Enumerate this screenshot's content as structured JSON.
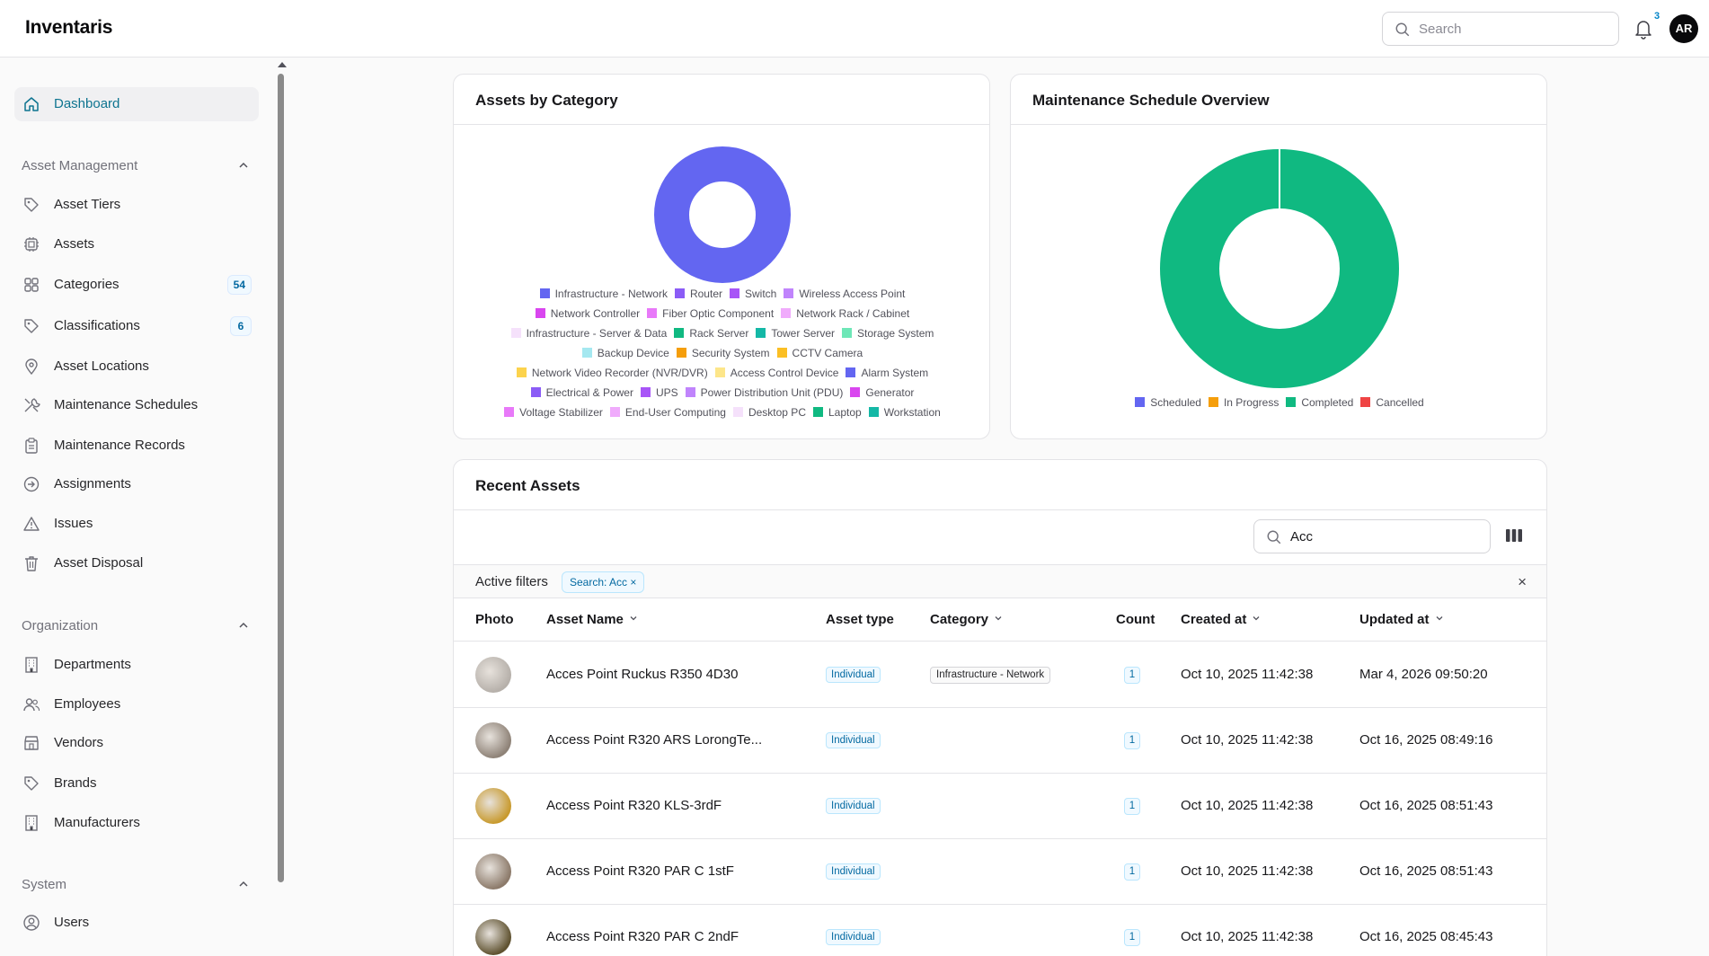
{
  "app": {
    "title": "Inventaris"
  },
  "header": {
    "search_placeholder": "Search",
    "notifications_count": "3",
    "avatar_initials": "AR"
  },
  "sidebar": {
    "dashboard": "Dashboard",
    "sections": [
      {
        "title": "Asset Management"
      },
      {
        "title": "Organization"
      },
      {
        "title": "System"
      }
    ],
    "items": [
      {
        "label": "Asset Tiers",
        "icon": "tag-icon"
      },
      {
        "label": "Assets",
        "icon": "chip-icon"
      },
      {
        "label": "Categories",
        "icon": "grid-icon",
        "badge": "54"
      },
      {
        "label": "Classifications",
        "icon": "tag-icon",
        "badge": "6"
      },
      {
        "label": "Asset Locations",
        "icon": "map-pin-icon"
      },
      {
        "label": "Maintenance Schedules",
        "icon": "wrench-icon"
      },
      {
        "label": "Maintenance Records",
        "icon": "clipboard-icon"
      },
      {
        "label": "Assignments",
        "icon": "arrow-circle-icon"
      },
      {
        "label": "Issues",
        "icon": "warning-icon"
      },
      {
        "label": "Asset Disposal",
        "icon": "trash-icon"
      },
      {
        "label": "Departments",
        "icon": "building-icon"
      },
      {
        "label": "Employees",
        "icon": "users-icon"
      },
      {
        "label": "Vendors",
        "icon": "store-icon"
      },
      {
        "label": "Brands",
        "icon": "tag-icon"
      },
      {
        "label": "Manufacturers",
        "icon": "building-icon"
      },
      {
        "label": "Users",
        "icon": "user-circle-icon"
      }
    ]
  },
  "charts": {
    "category": {
      "title": "Assets by Category",
      "legend_rows": [
        [
          {
            "label": "Infrastructure - Network",
            "color": "#6366f1"
          },
          {
            "label": "Router",
            "color": "#8b5cf6"
          },
          {
            "label": "Switch",
            "color": "#a855f7"
          },
          {
            "label": "Wireless Access Point",
            "color": "#c084fc"
          }
        ],
        [
          {
            "label": "Network Controller",
            "color": "#d946ef"
          },
          {
            "label": "Fiber Optic Component",
            "color": "#e879f9"
          },
          {
            "label": "Network Rack / Cabinet",
            "color": "#f0abfc"
          }
        ],
        [
          {
            "label": "Infrastructure - Server & Data",
            "color": "#f5e1fb"
          },
          {
            "label": "Rack Server",
            "color": "#10b981"
          },
          {
            "label": "Tower Server",
            "color": "#14b8a6"
          },
          {
            "label": "Storage System",
            "color": "#6ee7b7"
          }
        ],
        [
          {
            "label": "Backup Device",
            "color": "#a5e8f0"
          },
          {
            "label": "Security System",
            "color": "#f59e0b"
          },
          {
            "label": "CCTV Camera",
            "color": "#fbbf24"
          }
        ],
        [
          {
            "label": "Network Video Recorder (NVR/DVR)",
            "color": "#fcd34d"
          },
          {
            "label": "Access Control Device",
            "color": "#fde68a"
          },
          {
            "label": "Alarm System",
            "color": "#6366f1"
          }
        ],
        [
          {
            "label": "Electrical & Power",
            "color": "#8b5cf6"
          },
          {
            "label": "UPS",
            "color": "#a855f7"
          },
          {
            "label": "Power Distribution Unit (PDU)",
            "color": "#c084fc"
          },
          {
            "label": "Generator",
            "color": "#d946ef"
          }
        ],
        [
          {
            "label": "Voltage Stabilizer",
            "color": "#e879f9"
          },
          {
            "label": "End-User Computing",
            "color": "#f0abfc"
          },
          {
            "label": "Desktop PC",
            "color": "#f5e1fb"
          },
          {
            "label": "Laptop",
            "color": "#10b981"
          },
          {
            "label": "Workstation",
            "color": "#14b8a6"
          }
        ]
      ],
      "slices": [
        {
          "label": "Infrastructure - Network",
          "value": 100,
          "color": "#6366f1"
        }
      ]
    },
    "maintenance": {
      "title": "Maintenance Schedule Overview",
      "legend": [
        {
          "label": "Scheduled",
          "color": "#6366f1"
        },
        {
          "label": "In Progress",
          "color": "#f59e0b"
        },
        {
          "label": "Completed",
          "color": "#10b981"
        },
        {
          "label": "Cancelled",
          "color": "#ef4444"
        }
      ],
      "slices": [
        {
          "label": "Completed",
          "value": 100,
          "color": "#10b981"
        }
      ]
    }
  },
  "recent_assets": {
    "title": "Recent Assets",
    "search_value": "Acc",
    "filters_label": "Active filters",
    "filter_chip": "Search: Acc",
    "clear_icon": "×",
    "chip_close": "×",
    "columns": {
      "photo": "Photo",
      "name": "Asset Name",
      "type": "Asset type",
      "category": "Category",
      "count": "Count",
      "created": "Created at",
      "updated": "Updated at"
    },
    "rows": [
      {
        "name": "Acces Point Ruckus R350 4D30",
        "type": "Individual",
        "category": "Infrastructure - Network",
        "count": "1",
        "created": "Oct 10, 2025 11:42:38",
        "updated": "Mar 4, 2026 09:50:20",
        "photo_color": "#b6b0aa"
      },
      {
        "name": "Access Point R320 ARS LorongTe...",
        "type": "Individual",
        "category": "",
        "count": "1",
        "created": "Oct 10, 2025 11:42:38",
        "updated": "Oct 16, 2025 08:49:16",
        "photo_color": "#8e8277"
      },
      {
        "name": "Access Point R320 KLS-3rdF",
        "type": "Individual",
        "category": "",
        "count": "1",
        "created": "Oct 10, 2025 11:42:38",
        "updated": "Oct 16, 2025 08:51:43",
        "photo_color": "#c89a2e"
      },
      {
        "name": "Access Point R320 PAR C 1stF",
        "type": "Individual",
        "category": "",
        "count": "1",
        "created": "Oct 10, 2025 11:42:38",
        "updated": "Oct 16, 2025 08:51:43",
        "photo_color": "#8c7a6a"
      },
      {
        "name": "Access Point R320 PAR C 2ndF",
        "type": "Individual",
        "category": "",
        "count": "1",
        "created": "Oct 10, 2025 11:42:38",
        "updated": "Oct 16, 2025 08:45:43",
        "photo_color": "#5f5230"
      }
    ]
  }
}
